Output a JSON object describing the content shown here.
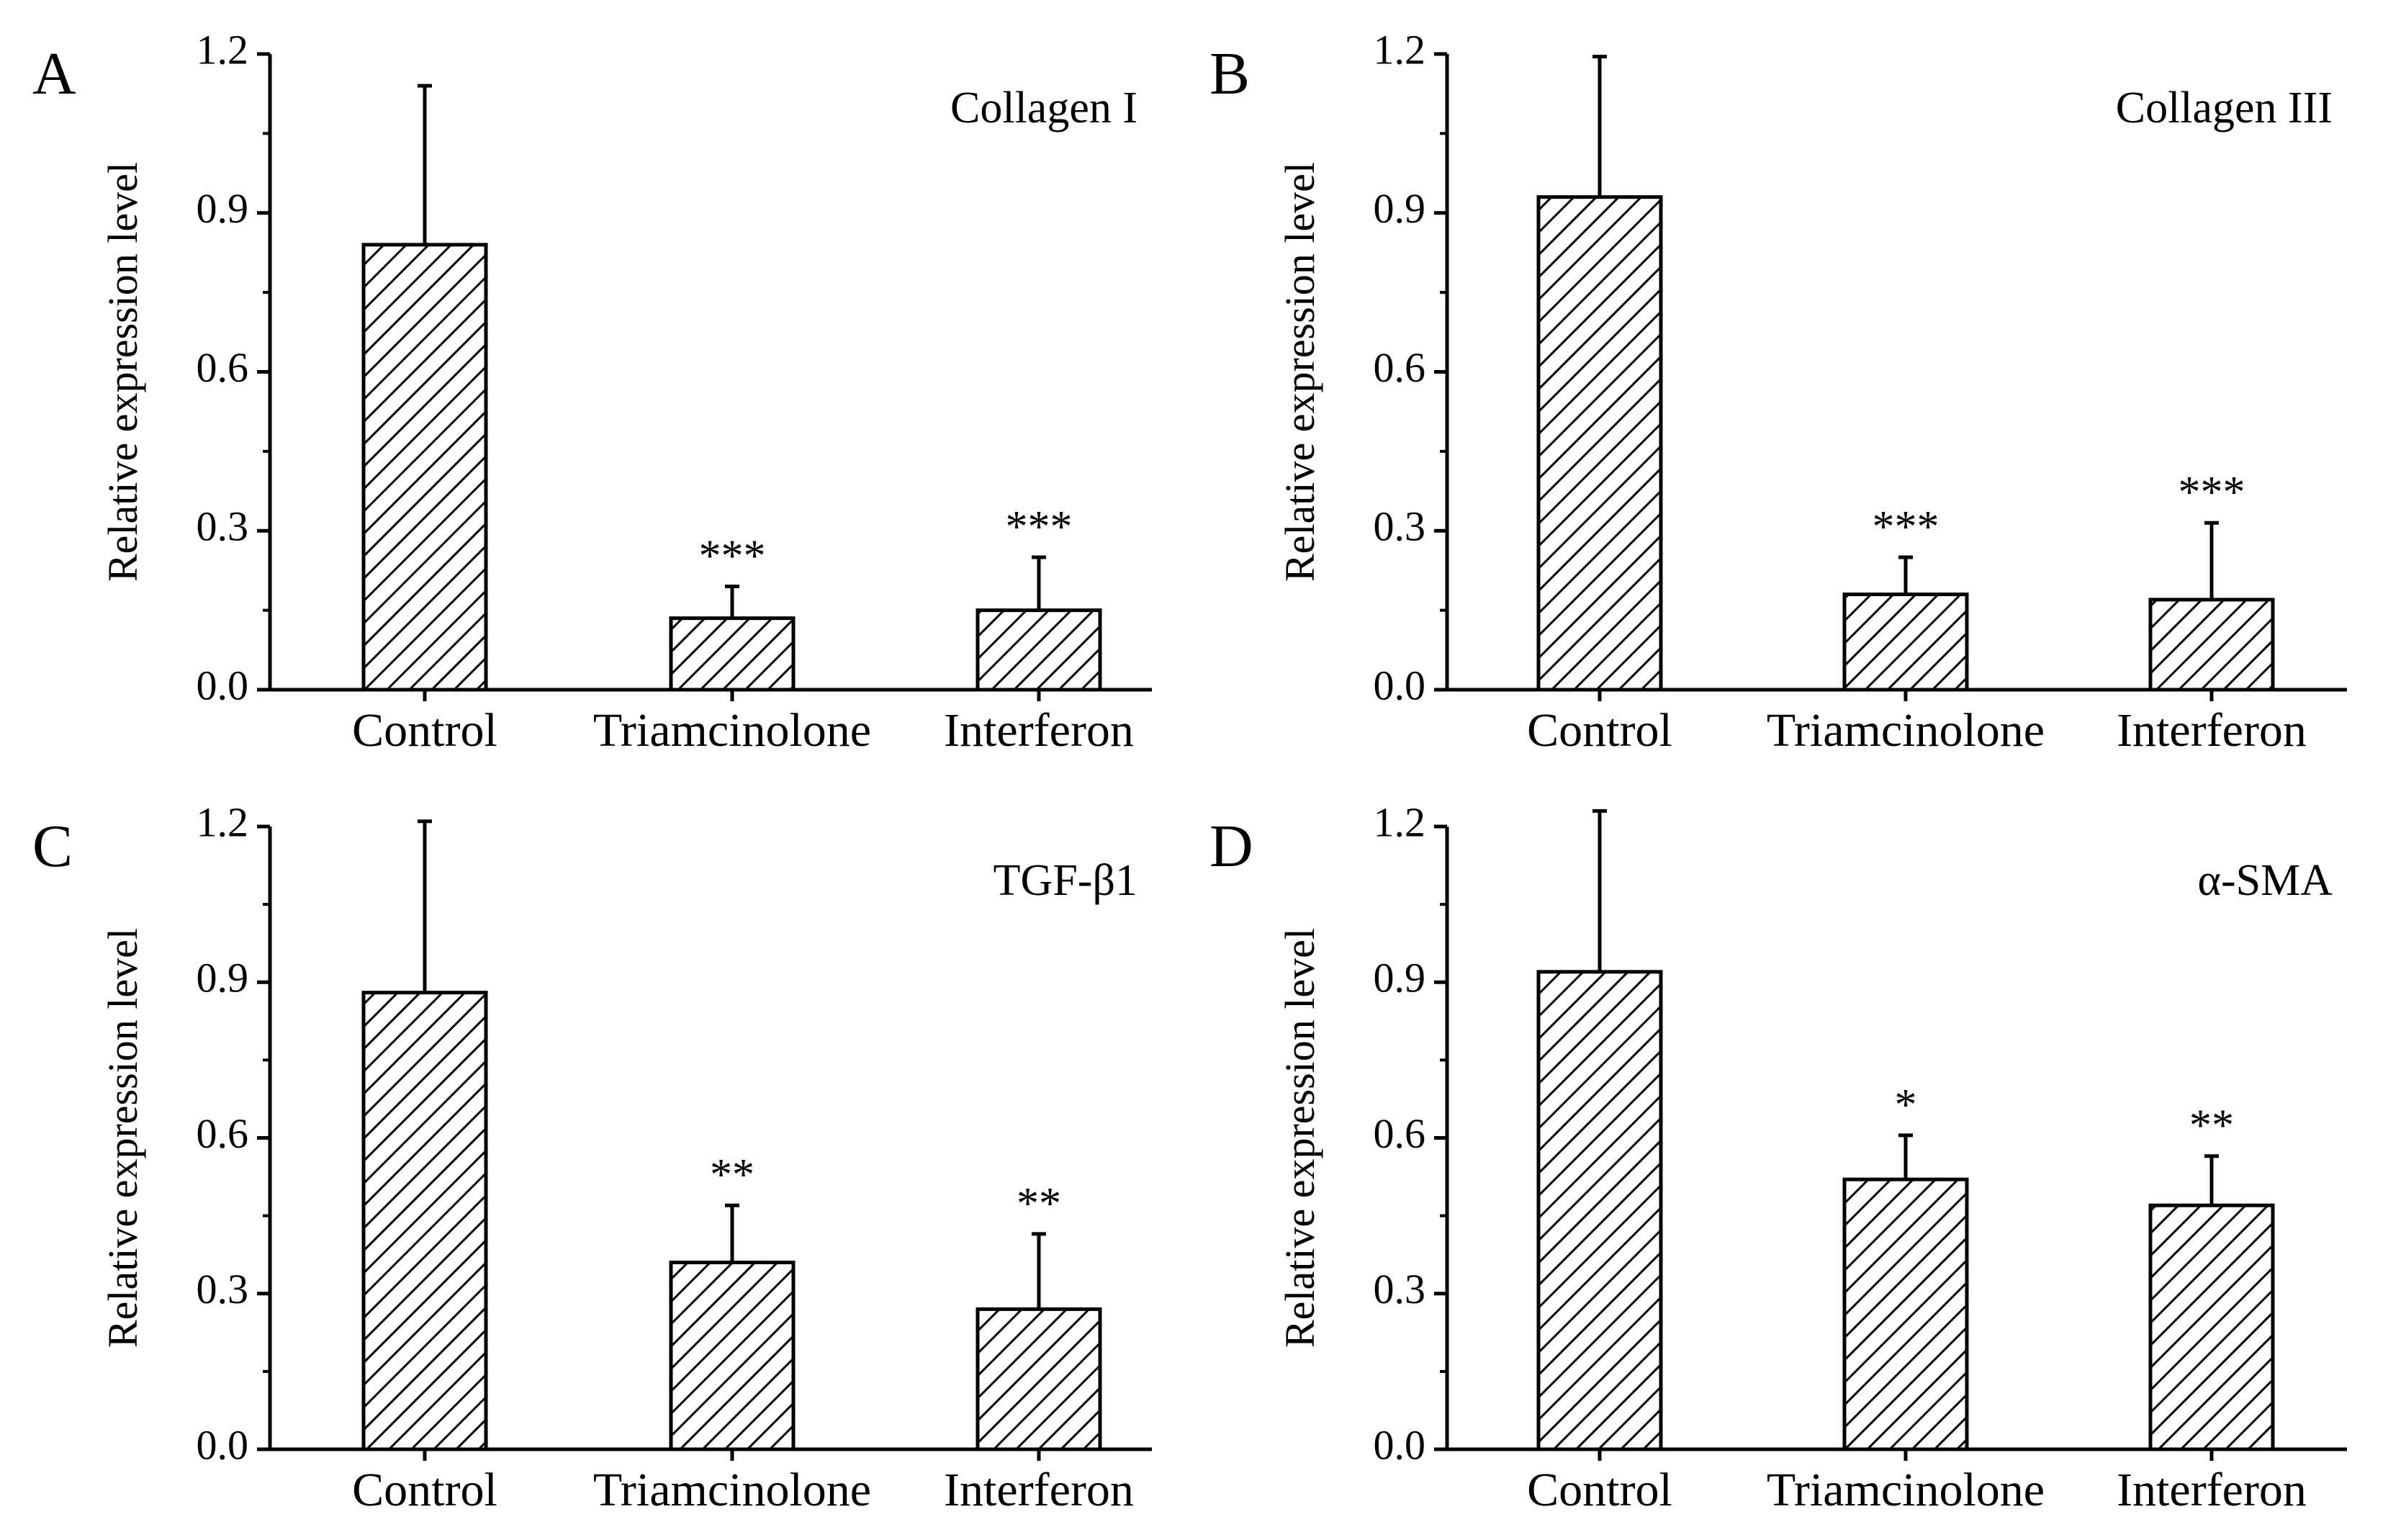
{
  "chart_data": [
    {
      "type": "bar",
      "panel": "A",
      "title": "Collagen I",
      "ylabel": "Relative expression level",
      "xlabel": "",
      "ylim": [
        0,
        1.2
      ],
      "yticks": [
        "0.0",
        "0.3",
        "0.6",
        "0.9",
        "1.2"
      ],
      "categories": [
        "Control",
        "Triamcinolone",
        "Interferon"
      ],
      "values": [
        0.84,
        0.135,
        0.15
      ],
      "errors": [
        0.3,
        0.06,
        0.1
      ],
      "significance": [
        "",
        "***",
        "***"
      ]
    },
    {
      "type": "bar",
      "panel": "B",
      "title": "Collagen III",
      "ylabel": "Relative expression level",
      "xlabel": "",
      "ylim": [
        0,
        1.2
      ],
      "yticks": [
        "0.0",
        "0.3",
        "0.6",
        "0.9",
        "1.2"
      ],
      "categories": [
        "Control",
        "Triamcinolone",
        "Interferon"
      ],
      "values": [
        0.93,
        0.18,
        0.17
      ],
      "errors": [
        0.265,
        0.07,
        0.145
      ],
      "significance": [
        "",
        "***",
        "***"
      ]
    },
    {
      "type": "bar",
      "panel": "C",
      "title": "TGF-β1",
      "ylabel": "Relative expression level",
      "xlabel": "",
      "ylim": [
        0,
        1.2
      ],
      "yticks": [
        "0.0",
        "0.3",
        "0.6",
        "0.9",
        "1.2"
      ],
      "categories": [
        "Control",
        "Triamcinolone",
        "Interferon"
      ],
      "values": [
        0.88,
        0.36,
        0.27
      ],
      "errors": [
        0.33,
        0.11,
        0.145
      ],
      "significance": [
        "",
        "**",
        "**"
      ]
    },
    {
      "type": "bar",
      "panel": "D",
      "title": "α-SMA",
      "ylabel": "Relative expression level",
      "xlabel": "",
      "ylim": [
        0,
        1.2
      ],
      "yticks": [
        "0.0",
        "0.3",
        "0.6",
        "0.9",
        "1.2"
      ],
      "categories": [
        "Control",
        "Triamcinolone",
        "Interferon"
      ],
      "values": [
        0.92,
        0.52,
        0.47
      ],
      "errors": [
        0.31,
        0.085,
        0.095
      ],
      "significance": [
        "",
        "*",
        "**"
      ]
    }
  ]
}
